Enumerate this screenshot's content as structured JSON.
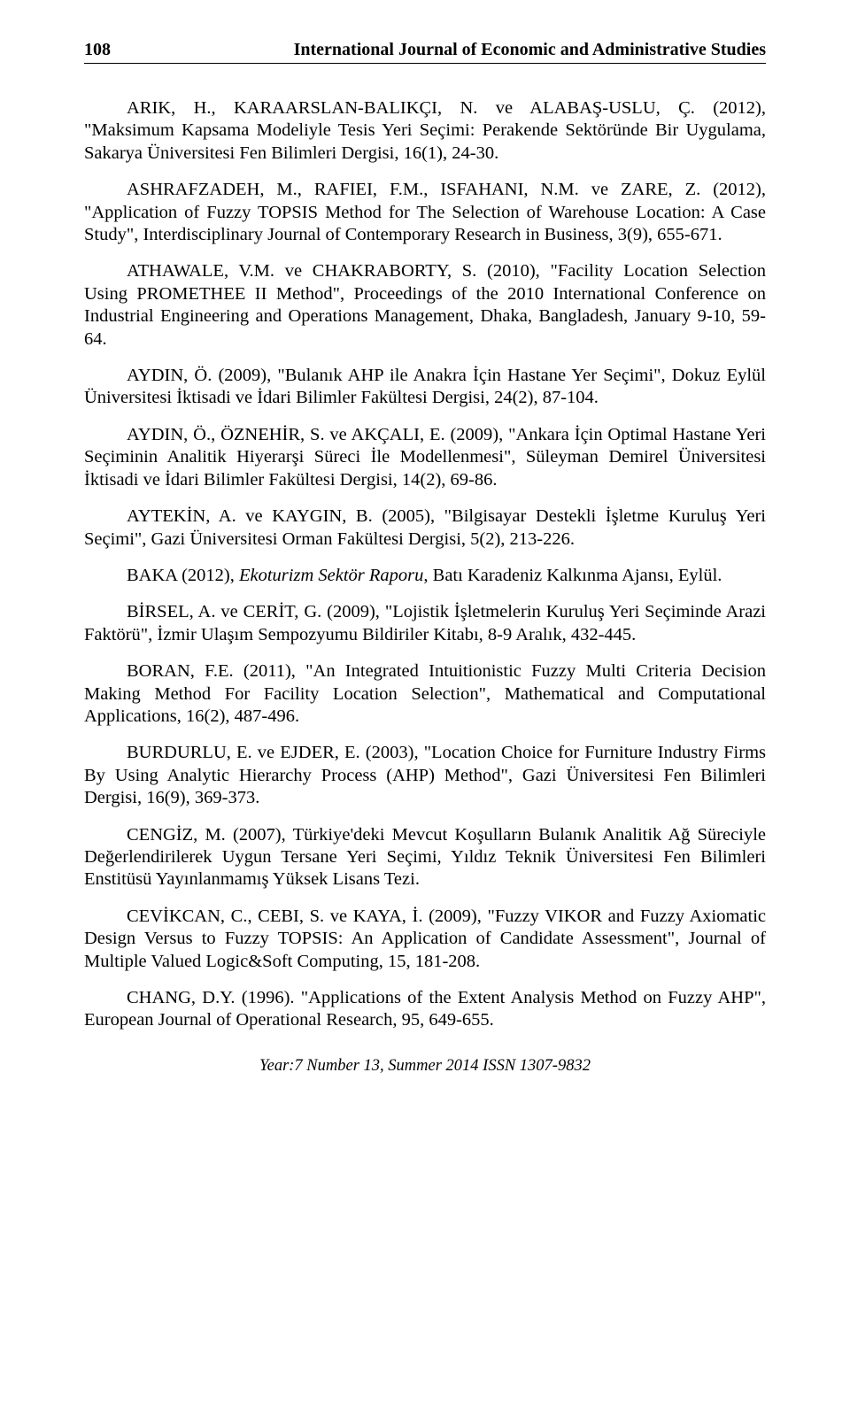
{
  "header": {
    "page_number": "108",
    "journal_title": "International Journal of Economic and Administrative Studies"
  },
  "references": [
    "ARIK, H., KARAARSLAN-BALIKÇI, N. ve ALABAŞ-USLU, Ç. (2012), \"Maksimum Kapsama Modeliyle Tesis Yeri Seçimi: Perakende Sektöründe Bir Uygulama, Sakarya Üniversitesi Fen Bilimleri Dergisi, 16(1), 24-30.",
    "ASHRAFZADEH, M., RAFIEI, F.M., ISFAHANI, N.M. ve ZARE, Z. (2012), \"Application of Fuzzy TOPSIS Method for The Selection of Warehouse Location: A Case Study\", Interdisciplinary Journal of Contemporary Research in Business, 3(9), 655-671.",
    "ATHAWALE, V.M. ve CHAKRABORTY, S. (2010), \"Facility Location Selection Using PROMETHEE II Method\", Proceedings of the 2010 International Conference on Industrial Engineering and Operations Management, Dhaka, Bangladesh, January 9-10, 59-64.",
    "AYDIN, Ö. (2009), \"Bulanık AHP ile Anakra İçin Hastane Yer Seçimi\", Dokuz Eylül Üniversitesi İktisadi ve İdari Bilimler Fakültesi Dergisi, 24(2), 87-104.",
    "AYDIN, Ö., ÖZNEHİR, S. ve AKÇALI, E. (2009), \"Ankara İçin Optimal Hastane Yeri Seçiminin Analitik Hiyerarşi Süreci İle Modellenmesi\", Süleyman Demirel Üniversitesi İktisadi ve İdari Bilimler Fakültesi Dergisi, 14(2), 69-86.",
    "AYTEKİN, A. ve KAYGIN, B. (2005), \"Bilgisayar Destekli İşletme Kuruluş Yeri Seçimi\", Gazi Üniversitesi Orman Fakültesi Dergisi, 5(2), 213-226.",
    "BİRSEL, A. ve CERİT, G. (2009), \"Lojistik İşletmelerin Kuruluş Yeri Seçiminde Arazi Faktörü\", İzmir Ulaşım Sempozyumu Bildiriler Kitabı, 8-9 Aralık, 432-445.",
    "BORAN, F.E. (2011), \"An Integrated Intuitionistic Fuzzy Multi Criteria Decision Making Method For Facility Location Selection\", Mathematical and Computational Applications, 16(2), 487-496.",
    "BURDURLU, E. ve EJDER, E. (2003), \"Location Choice for Furniture Industry Firms By Using Analytic Hierarchy Process (AHP) Method\", Gazi Üniversitesi Fen Bilimleri Dergisi, 16(9), 369-373.",
    "CENGİZ, M. (2007), Türkiye'deki Mevcut Koşulların Bulanık Analitik Ağ Süreciyle Değerlendirilerek Uygun Tersane Yeri Seçimi, Yıldız Teknik Üniversitesi Fen Bilimleri Enstitüsü Yayınlanmamış Yüksek Lisans Tezi.",
    "CEVİKCAN, C., CEBI, S. ve KAYA, İ. (2009), \"Fuzzy VIKOR and Fuzzy Axiomatic Design Versus to Fuzzy TOPSIS: An Application of Candidate Assessment\", Journal of Multiple Valued Logic&Soft Computing, 15, 181-208.",
    "CHANG, D.Y. (1996). \"Applications of the Extent Analysis Method on Fuzzy AHP\", European Journal of Operational Research, 95, 649-655."
  ],
  "special_reference": {
    "prefix": "BAKA (2012), ",
    "italic_part": "Ekoturizm Sektör Raporu",
    "suffix": ", Batı Karadeniz Kalkınma Ajansı, Eylül."
  },
  "footer": "Year:7 Number 13, Summer 2014 ISSN 1307-9832"
}
